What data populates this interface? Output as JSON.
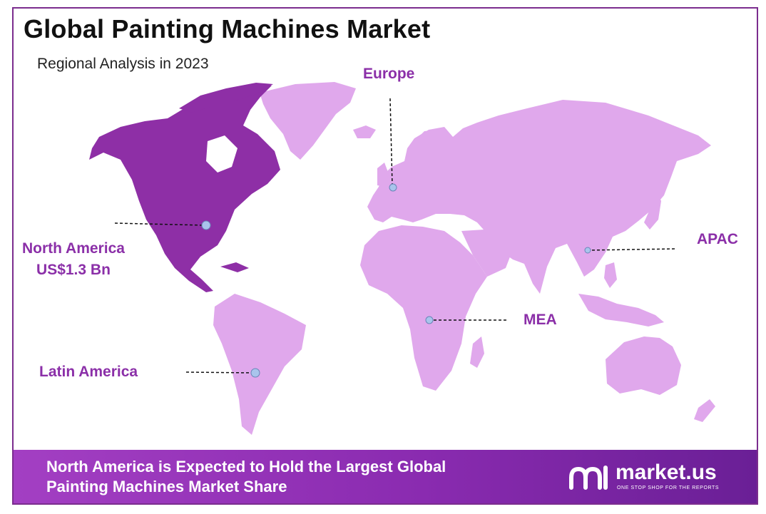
{
  "title": "Global Painting Machines Market",
  "subtitle": "Regional Analysis in 2023",
  "regions": {
    "north_america": {
      "name": "North America",
      "value": "US$1.3 Bn",
      "highlighted": true
    },
    "europe": {
      "name": "Europe"
    },
    "apac": {
      "name": "APAC"
    },
    "mea": {
      "name": "MEA"
    },
    "latin_america": {
      "name": "Latin America"
    }
  },
  "footer": {
    "line1": "North America is Expected to Hold the Largest Global",
    "line2": "Painting Machines Market Share"
  },
  "logo": {
    "name": "market.us",
    "tagline": "ONE STOP SHOP FOR THE REPORTS"
  },
  "colors": {
    "highlight": "#8e2fa6",
    "land": "#e0a8ec",
    "label": "#8b2fa8",
    "marker": "#a9c4ec"
  }
}
